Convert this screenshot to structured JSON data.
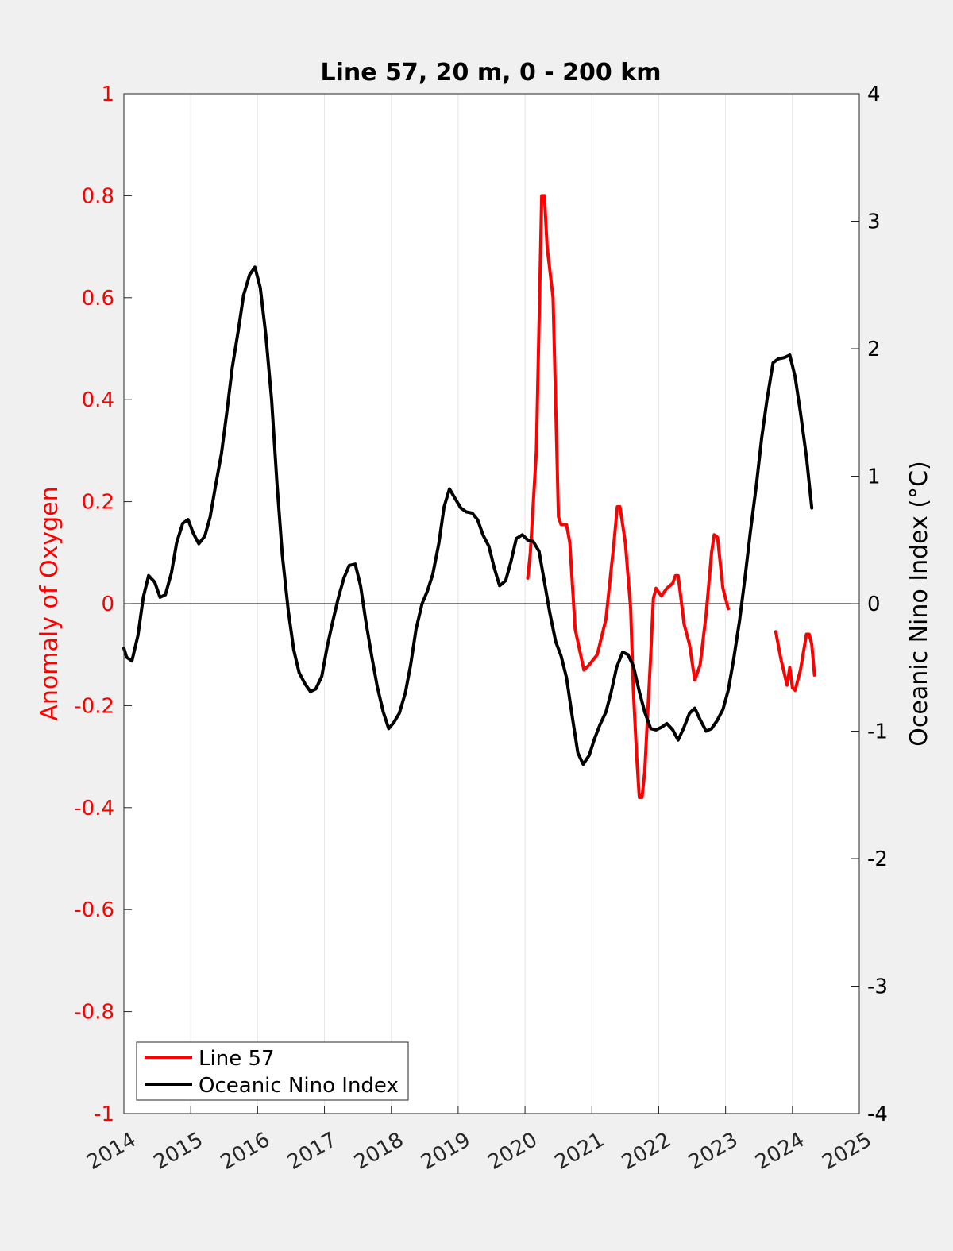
{
  "chart_data": {
    "type": "line",
    "title": "Line 57, 20 m, 0 - 200 km",
    "xlim": [
      2014,
      2025
    ],
    "x_ticks": [
      "2014",
      "2015",
      "2016",
      "2017",
      "2018",
      "2019",
      "2020",
      "2021",
      "2022",
      "2023",
      "2024",
      "2025"
    ],
    "y_left": {
      "label": "Anomaly of Oxygen",
      "color": "#ff0000",
      "lim": [
        -1,
        1
      ],
      "ticks": [
        "1",
        "0.8",
        "0.6",
        "0.4",
        "0.2",
        "0",
        "-0.2",
        "-0.4",
        "-0.6",
        "-0.8",
        "-1"
      ]
    },
    "y_right": {
      "label": "Oceanic Nino Index (°C)",
      "color": "#000000",
      "lim": [
        -4,
        4
      ],
      "ticks": [
        "4",
        "3",
        "2",
        "1",
        "0",
        "-1",
        "-2",
        "-3",
        "-4"
      ]
    },
    "zero_line": true,
    "vertical_grid": true,
    "legend": {
      "position": "bottom-left"
    },
    "series": [
      {
        "name": "Line 57",
        "axis": "left",
        "color": "#ff0000",
        "segments": [
          [
            [
              2020.04,
              0.05
            ],
            [
              2020.08,
              0.1
            ],
            [
              2020.17,
              0.3
            ],
            [
              2020.25,
              0.8
            ],
            [
              2020.29,
              0.8
            ],
            [
              2020.33,
              0.7
            ],
            [
              2020.42,
              0.6
            ],
            [
              2020.5,
              0.17
            ],
            [
              2020.54,
              0.155
            ],
            [
              2020.62,
              0.155
            ],
            [
              2020.67,
              0.12
            ],
            [
              2020.75,
              -0.05
            ],
            [
              2020.88,
              -0.13
            ],
            [
              2020.96,
              -0.12
            ],
            [
              2021.08,
              -0.1
            ],
            [
              2021.21,
              -0.03
            ],
            [
              2021.33,
              0.12
            ],
            [
              2021.38,
              0.19
            ],
            [
              2021.42,
              0.19
            ],
            [
              2021.5,
              0.12
            ],
            [
              2021.58,
              -0.01
            ],
            [
              2021.62,
              -0.17
            ],
            [
              2021.67,
              -0.3
            ],
            [
              2021.71,
              -0.38
            ],
            [
              2021.75,
              -0.38
            ],
            [
              2021.79,
              -0.33
            ],
            [
              2021.83,
              -0.23
            ],
            [
              2021.88,
              -0.1
            ],
            [
              2021.92,
              0.01
            ],
            [
              2021.96,
              0.03
            ],
            [
              2022.04,
              0.015
            ],
            [
              2022.12,
              0.03
            ],
            [
              2022.21,
              0.04
            ],
            [
              2022.25,
              0.055
            ],
            [
              2022.29,
              0.055
            ],
            [
              2022.38,
              -0.04
            ],
            [
              2022.46,
              -0.08
            ],
            [
              2022.54,
              -0.15
            ],
            [
              2022.62,
              -0.12
            ],
            [
              2022.71,
              -0.02
            ],
            [
              2022.79,
              0.1
            ],
            [
              2022.83,
              0.135
            ],
            [
              2022.88,
              0.13
            ],
            [
              2022.96,
              0.03
            ],
            [
              2023.04,
              -0.01
            ]
          ],
          [
            [
              2023.75,
              -0.055
            ],
            [
              2023.83,
              -0.11
            ],
            [
              2023.92,
              -0.16
            ],
            [
              2023.96,
              -0.125
            ],
            [
              2024.0,
              -0.165
            ],
            [
              2024.04,
              -0.17
            ],
            [
              2024.12,
              -0.13
            ],
            [
              2024.21,
              -0.06
            ],
            [
              2024.25,
              -0.06
            ],
            [
              2024.29,
              -0.08
            ],
            [
              2024.33,
              -0.14
            ]
          ]
        ]
      },
      {
        "name": "Oceanic Nino Index",
        "axis": "right",
        "color": "#000000",
        "segments": [
          [
            [
              2014.0,
              -0.35
            ],
            [
              2014.04,
              -0.42
            ],
            [
              2014.12,
              -0.45
            ],
            [
              2014.21,
              -0.25
            ],
            [
              2014.29,
              0.05
            ],
            [
              2014.37,
              0.22
            ],
            [
              2014.46,
              0.17
            ],
            [
              2014.54,
              0.05
            ],
            [
              2014.62,
              0.07
            ],
            [
              2014.71,
              0.24
            ],
            [
              2014.79,
              0.48
            ],
            [
              2014.88,
              0.63
            ],
            [
              2014.96,
              0.66
            ],
            [
              2015.04,
              0.55
            ],
            [
              2015.12,
              0.47
            ],
            [
              2015.21,
              0.53
            ],
            [
              2015.29,
              0.68
            ],
            [
              2015.37,
              0.92
            ],
            [
              2015.46,
              1.18
            ],
            [
              2015.54,
              1.5
            ],
            [
              2015.62,
              1.85
            ],
            [
              2015.71,
              2.14
            ],
            [
              2015.79,
              2.42
            ],
            [
              2015.88,
              2.58
            ],
            [
              2015.96,
              2.64
            ],
            [
              2016.04,
              2.48
            ],
            [
              2016.12,
              2.12
            ],
            [
              2016.21,
              1.6
            ],
            [
              2016.29,
              0.94
            ],
            [
              2016.37,
              0.38
            ],
            [
              2016.46,
              -0.06
            ],
            [
              2016.54,
              -0.36
            ],
            [
              2016.62,
              -0.54
            ],
            [
              2016.71,
              -0.63
            ],
            [
              2016.79,
              -0.69
            ],
            [
              2016.87,
              -0.67
            ],
            [
              2016.96,
              -0.57
            ],
            [
              2017.04,
              -0.34
            ],
            [
              2017.12,
              -0.15
            ],
            [
              2017.21,
              0.05
            ],
            [
              2017.29,
              0.2
            ],
            [
              2017.37,
              0.3
            ],
            [
              2017.46,
              0.31
            ],
            [
              2017.54,
              0.14
            ],
            [
              2017.62,
              -0.14
            ],
            [
              2017.71,
              -0.42
            ],
            [
              2017.79,
              -0.65
            ],
            [
              2017.88,
              -0.85
            ],
            [
              2017.96,
              -0.98
            ],
            [
              2018.04,
              -0.93
            ],
            [
              2018.12,
              -0.86
            ],
            [
              2018.21,
              -0.7
            ],
            [
              2018.29,
              -0.48
            ],
            [
              2018.37,
              -0.2
            ],
            [
              2018.46,
              0.0
            ],
            [
              2018.54,
              0.1
            ],
            [
              2018.62,
              0.23
            ],
            [
              2018.71,
              0.47
            ],
            [
              2018.79,
              0.76
            ],
            [
              2018.87,
              0.9
            ],
            [
              2018.96,
              0.82
            ],
            [
              2019.04,
              0.75
            ],
            [
              2019.12,
              0.72
            ],
            [
              2019.21,
              0.71
            ],
            [
              2019.29,
              0.66
            ],
            [
              2019.37,
              0.54
            ],
            [
              2019.46,
              0.45
            ],
            [
              2019.54,
              0.28
            ],
            [
              2019.62,
              0.14
            ],
            [
              2019.71,
              0.18
            ],
            [
              2019.79,
              0.33
            ],
            [
              2019.87,
              0.51
            ],
            [
              2019.96,
              0.54
            ],
            [
              2020.04,
              0.5
            ],
            [
              2020.12,
              0.49
            ],
            [
              2020.21,
              0.41
            ],
            [
              2020.29,
              0.17
            ],
            [
              2020.37,
              -0.07
            ],
            [
              2020.46,
              -0.3
            ],
            [
              2020.54,
              -0.41
            ],
            [
              2020.62,
              -0.58
            ],
            [
              2020.71,
              -0.9
            ],
            [
              2020.79,
              -1.17
            ],
            [
              2020.87,
              -1.26
            ],
            [
              2020.96,
              -1.19
            ],
            [
              2021.04,
              -1.06
            ],
            [
              2021.12,
              -0.95
            ],
            [
              2021.21,
              -0.85
            ],
            [
              2021.29,
              -0.69
            ],
            [
              2021.37,
              -0.5
            ],
            [
              2021.46,
              -0.38
            ],
            [
              2021.54,
              -0.4
            ],
            [
              2021.62,
              -0.49
            ],
            [
              2021.71,
              -0.69
            ],
            [
              2021.79,
              -0.85
            ],
            [
              2021.88,
              -0.98
            ],
            [
              2021.96,
              -0.99
            ],
            [
              2022.04,
              -0.97
            ],
            [
              2022.12,
              -0.94
            ],
            [
              2022.21,
              -0.99
            ],
            [
              2022.29,
              -1.07
            ],
            [
              2022.37,
              -0.98
            ],
            [
              2022.46,
              -0.86
            ],
            [
              2022.54,
              -0.82
            ],
            [
              2022.62,
              -0.91
            ],
            [
              2022.71,
              -1.0
            ],
            [
              2022.79,
              -0.98
            ],
            [
              2022.87,
              -0.92
            ],
            [
              2022.96,
              -0.83
            ],
            [
              2023.04,
              -0.68
            ],
            [
              2023.12,
              -0.44
            ],
            [
              2023.21,
              -0.13
            ],
            [
              2023.29,
              0.2
            ],
            [
              2023.37,
              0.56
            ],
            [
              2023.46,
              0.93
            ],
            [
              2023.54,
              1.3
            ],
            [
              2023.62,
              1.6
            ],
            [
              2023.71,
              1.89
            ],
            [
              2023.79,
              1.92
            ],
            [
              2023.88,
              1.93
            ],
            [
              2023.96,
              1.95
            ],
            [
              2024.04,
              1.78
            ],
            [
              2024.12,
              1.5
            ],
            [
              2024.21,
              1.15
            ],
            [
              2024.29,
              0.75
            ]
          ]
        ]
      }
    ]
  }
}
